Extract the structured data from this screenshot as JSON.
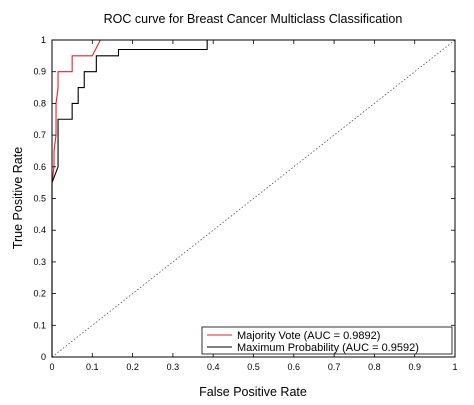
{
  "chart_data": {
    "type": "line",
    "title": "ROC curve for Breast Cancer Multiclass Classification",
    "xlabel": "False Positive Rate",
    "ylabel": "True Positive Rate",
    "xlim": [
      0,
      1
    ],
    "ylim": [
      0,
      1
    ],
    "xticks": [
      "0",
      "0.1",
      "0.2",
      "0.3",
      "0.4",
      "0.5",
      "0.6",
      "0.7",
      "0.8",
      "0.9",
      "1"
    ],
    "yticks": [
      "0",
      "0.1",
      "0.2",
      "0.3",
      "0.4",
      "0.5",
      "0.6",
      "0.7",
      "0.8",
      "0.9",
      "1"
    ],
    "grid": false,
    "legend_position": "bottom-right",
    "series": [
      {
        "name": "Majority Vote (AUC = 0.9892)",
        "color": "#e8202a",
        "x": [
          0,
          0,
          0.005,
          0.005,
          0.01,
          0.01,
          0.015,
          0.015,
          0.05,
          0.05,
          0.1,
          0.12,
          1
        ],
        "y": [
          0,
          0.55,
          0.6,
          0.65,
          0.7,
          0.8,
          0.85,
          0.9,
          0.9,
          0.95,
          0.95,
          1,
          1
        ]
      },
      {
        "name": "Maximum Probability (AUC = 0.9592)",
        "color": "#000000",
        "x": [
          0,
          0,
          0.015,
          0.015,
          0.05,
          0.05,
          0.065,
          0.065,
          0.08,
          0.08,
          0.11,
          0.11,
          0.165,
          0.165,
          0.385,
          0.385,
          1
        ],
        "y": [
          0,
          0.55,
          0.6,
          0.75,
          0.75,
          0.8,
          0.8,
          0.85,
          0.85,
          0.9,
          0.9,
          0.95,
          0.95,
          0.97,
          0.97,
          1,
          1
        ]
      },
      {
        "name": "",
        "color": "#555555",
        "dash": "dotted",
        "x": [
          0,
          1
        ],
        "y": [
          0,
          1
        ]
      }
    ]
  }
}
